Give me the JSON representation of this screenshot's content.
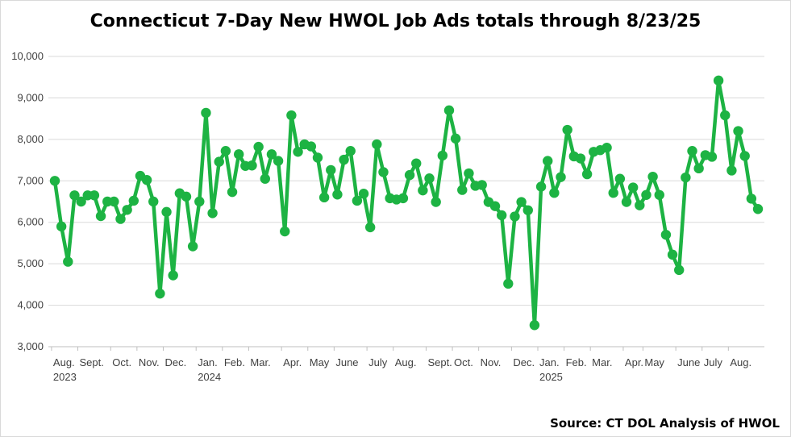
{
  "title": "Connecticut 7-Day New HWOL Job Ads totals through 8/23/25",
  "source": "Source: CT DOL Analysis of HWOL",
  "colors": {
    "series": "#1db343",
    "grid": "#d9d9d9",
    "axis": "#bfbfbf",
    "text": "#404040"
  },
  "chart_data": {
    "type": "line",
    "title": "Connecticut 7-Day New HWOL Job Ads totals through 8/23/25",
    "xlabel": "",
    "ylabel": "",
    "ylim": [
      3000,
      10000
    ],
    "yticks": [
      3000,
      4000,
      5000,
      6000,
      7000,
      8000,
      9000,
      10000
    ],
    "ytick_labels": [
      "3,000",
      "4,000",
      "5,000",
      "6,000",
      "7,000",
      "8,000",
      "9,000",
      "10,000"
    ],
    "grid": "horizontal",
    "markers": "circle",
    "x_tick_labels": [
      {
        "label": "Aug.",
        "index": 0,
        "year": "2023"
      },
      {
        "label": "Sept.",
        "index": 4
      },
      {
        "label": "Oct.",
        "index": 9
      },
      {
        "label": "Nov.",
        "index": 13
      },
      {
        "label": "Dec.",
        "index": 17
      },
      {
        "label": "Jan.",
        "index": 22,
        "year": "2024"
      },
      {
        "label": "Feb.",
        "index": 26
      },
      {
        "label": "Mar.",
        "index": 30
      },
      {
        "label": "Apr.",
        "index": 35
      },
      {
        "label": "May",
        "index": 39
      },
      {
        "label": "June",
        "index": 43
      },
      {
        "label": "July",
        "index": 48
      },
      {
        "label": "Aug.",
        "index": 52
      },
      {
        "label": "Sept.",
        "index": 57
      },
      {
        "label": "Oct.",
        "index": 61
      },
      {
        "label": "Nov.",
        "index": 65
      },
      {
        "label": "Dec.",
        "index": 70
      },
      {
        "label": "Jan.",
        "index": 74,
        "year": "2025"
      },
      {
        "label": "Feb.",
        "index": 78
      },
      {
        "label": "Mar.",
        "index": 82
      },
      {
        "label": "Apr.",
        "index": 87
      },
      {
        "label": "May",
        "index": 90
      },
      {
        "label": "June",
        "index": 95
      },
      {
        "label": "July",
        "index": 99
      },
      {
        "label": "Aug.",
        "index": 103
      }
    ],
    "series": [
      {
        "values": [
          7000,
          5900,
          5050,
          6650,
          6500,
          6650,
          6650,
          6150,
          6500,
          6500,
          6080,
          6300,
          6520,
          7120,
          7020,
          6500,
          4280,
          6250,
          4720,
          6700,
          6620,
          5420,
          6500,
          8640,
          6220,
          7460,
          7720,
          6730,
          7640,
          7360,
          7370,
          7820,
          7050,
          7640,
          7480,
          5780,
          8580,
          7700,
          7880,
          7830,
          7560,
          6600,
          7260,
          6670,
          7510,
          7720,
          6520,
          6690,
          5880,
          7880,
          7210,
          6580,
          6550,
          6580,
          7140,
          7420,
          6770,
          7060,
          6490,
          7610,
          8700,
          8020,
          6780,
          7180,
          6880,
          6900,
          6490,
          6390,
          6170,
          4520,
          6140,
          6490,
          6290,
          3520,
          6860,
          7480,
          6710,
          7090,
          8230,
          7590,
          7540,
          7160,
          7700,
          7740,
          7800,
          6710,
          7050,
          6490,
          6840,
          6410,
          6660,
          7100,
          6660,
          5700,
          5220,
          4850,
          7080,
          7720,
          7300,
          7620,
          7580,
          9420,
          8580,
          7250,
          8200,
          7600,
          6570,
          6320
        ]
      }
    ]
  }
}
